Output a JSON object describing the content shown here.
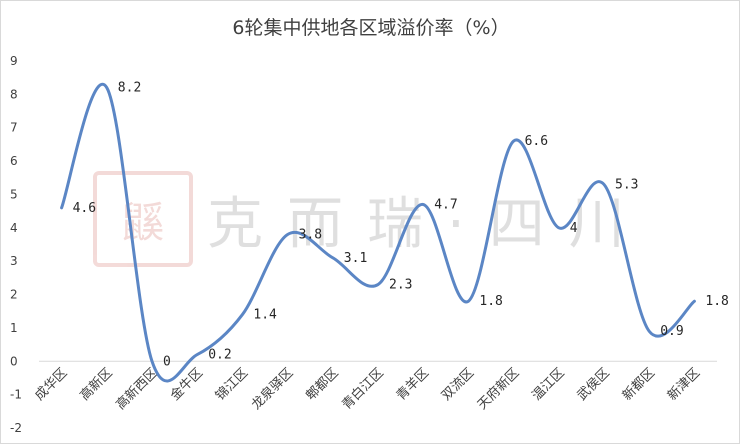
{
  "chart_data": {
    "type": "line",
    "title": "6轮集中供地各区域溢价率（%）",
    "categories": [
      "成华区",
      "高新区",
      "高新西区",
      "金牛区",
      "锦江区",
      "龙泉驿区",
      "郫都区",
      "青白江区",
      "青羊区",
      "双流区",
      "天府新区",
      "温江区",
      "武侯区",
      "新都区",
      "新津区"
    ],
    "series": [
      {
        "values": [
          4.6,
          8.2,
          0,
          0.2,
          1.4,
          3.8,
          3.1,
          2.3,
          4.7,
          1.8,
          6.6,
          4,
          5.3,
          0.9,
          1.8
        ]
      }
    ],
    "data_labels": [
      "4.6",
      "8.2",
      "0",
      "0.2",
      "1.4",
      "3.8",
      "3.1",
      "2.3",
      "4.7",
      "1.8",
      "6.6",
      "4",
      "5.3",
      "0.9",
      "1.8"
    ],
    "ylim": [
      -2,
      9
    ],
    "yticks": [
      -2,
      -1,
      0,
      1,
      2,
      3,
      4,
      5,
      6,
      7,
      8,
      9
    ],
    "grid": false,
    "line_color": "#5b86c5",
    "smooth": true
  },
  "watermark": {
    "seal": "鼷",
    "text": "克而瑞·四川"
  }
}
